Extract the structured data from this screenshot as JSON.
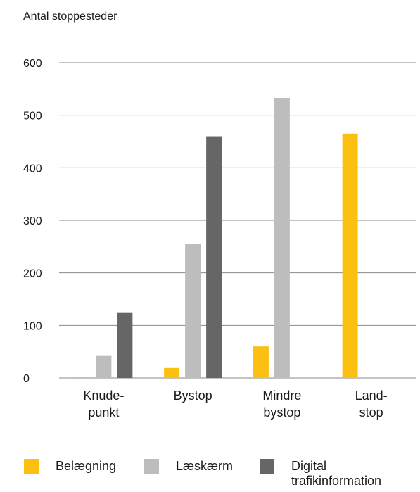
{
  "chart_data": {
    "type": "bar",
    "ylabel": "Antal stoppesteder",
    "ylim": [
      0,
      600
    ],
    "yticks": [
      "0",
      "100",
      "200",
      "300",
      "400",
      "500",
      "600"
    ],
    "categories": [
      [
        "Knude-",
        "punkt"
      ],
      [
        "Bystop"
      ],
      [
        "Mindre",
        "bystop"
      ],
      [
        "Land-",
        "stop"
      ]
    ],
    "series": [
      {
        "name": "Belægning",
        "color": "#fcc110",
        "values": [
          2,
          19,
          60,
          465
        ]
      },
      {
        "name": "Læskærm",
        "color": "#bdbdbd",
        "values": [
          42,
          255,
          533,
          0
        ]
      },
      {
        "name": "Digital trafikinformation",
        "color": "#666666",
        "values": [
          125,
          460,
          0,
          0
        ]
      }
    ],
    "grid": true,
    "legend_position": "bottom"
  },
  "legend": {
    "items": [
      {
        "label": "Belægning",
        "color": "#fcc110"
      },
      {
        "label": "Læskærm",
        "color": "#bdbdbd"
      },
      {
        "label": "Digital\ntrafikinformation",
        "color": "#666666"
      }
    ]
  }
}
